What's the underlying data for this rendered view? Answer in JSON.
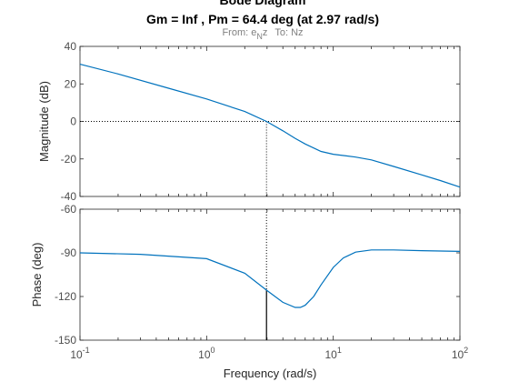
{
  "chart_data": {
    "type": "line",
    "title": "Bode Diagram",
    "subtitle": "Gm = Inf ,  Pm = 64.4 deg (at 2.97 rad/s)",
    "io_label": {
      "from_prefix": "From: e",
      "from_sub": "N",
      "from_suffix": "z",
      "to": "To: Nz"
    },
    "xlabel": "Frequency  (rad/s)",
    "xscale": "log",
    "xlim": [
      0.1,
      100
    ],
    "x_ticks": [
      {
        "value": 0.1,
        "base": "10",
        "exp": "-1"
      },
      {
        "value": 1,
        "base": "10",
        "exp": "0"
      },
      {
        "value": 10,
        "base": "10",
        "exp": "1"
      },
      {
        "value": 100,
        "base": "10",
        "exp": "2"
      }
    ],
    "crossover_frequency": 2.97,
    "grid": false,
    "line_color": "#0072bd",
    "magnitude": {
      "ylabel": "Magnitude (dB)",
      "ylim": [
        -40,
        40
      ],
      "yticks": [
        -40,
        -20,
        0,
        20,
        40
      ],
      "reference_line": 0,
      "x": [
        0.1,
        0.2,
        0.5,
        1,
        2,
        2.97,
        4,
        5,
        6,
        8,
        10,
        15,
        20,
        30,
        50,
        70,
        100
      ],
      "y": [
        30.5,
        25.3,
        17.7,
        12,
        5.3,
        0,
        -5,
        -9,
        -12,
        -16,
        -17.5,
        -19,
        -20.5,
        -24,
        -28.5,
        -31.5,
        -35
      ]
    },
    "phase": {
      "ylabel": "Phase (deg)",
      "ylim": [
        -150,
        -60
      ],
      "yticks": [
        -150,
        -120,
        -90,
        -60
      ],
      "x": [
        0.1,
        0.3,
        1,
        2,
        2.97,
        4,
        5,
        5.5,
        6,
        7,
        8,
        10,
        12,
        15,
        20,
        30,
        50,
        100
      ],
      "y": [
        -90,
        -91,
        -94,
        -104,
        -115.6,
        -124,
        -127.5,
        -127.5,
        -126,
        -120,
        -112,
        -100,
        -93.5,
        -89.5,
        -88,
        -88,
        -88.5,
        -89
      ]
    }
  }
}
